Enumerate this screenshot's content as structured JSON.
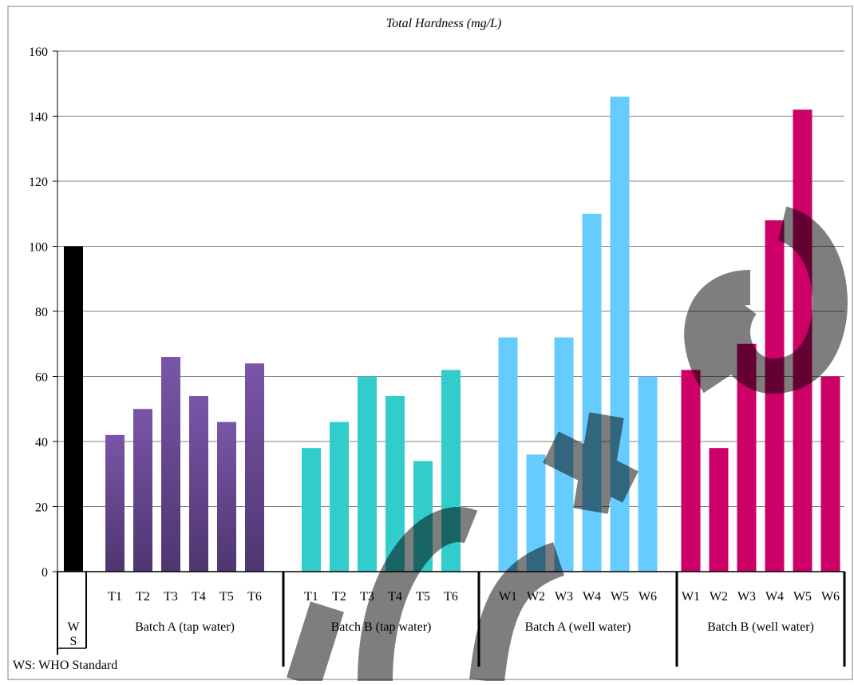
{
  "chart_data": {
    "type": "bar",
    "title": "Total Hardness (mg/L)",
    "ylim": [
      0,
      160
    ],
    "yticks": [
      0,
      20,
      40,
      60,
      80,
      100,
      120,
      140,
      160
    ],
    "grid": true,
    "footnote": "WS: WHO Standard",
    "groups": [
      {
        "name": "W\nS",
        "name_lines": [
          "W",
          "S"
        ],
        "color": "#000000",
        "bars": [
          {
            "label": "",
            "value": 100
          }
        ]
      },
      {
        "name": "Batch A (tap water)",
        "color": "#7a55a8",
        "gradient_bottom": "#4e3670",
        "bars": [
          {
            "label": "T1",
            "value": 42
          },
          {
            "label": "T2",
            "value": 50
          },
          {
            "label": "T3",
            "value": 66
          },
          {
            "label": "T4",
            "value": 54
          },
          {
            "label": "T5",
            "value": 46
          },
          {
            "label": "T6",
            "value": 64
          }
        ]
      },
      {
        "name": "Batch B (tap water)",
        "color": "#33cccc",
        "bars": [
          {
            "label": "T1",
            "value": 38
          },
          {
            "label": "T2",
            "value": 46
          },
          {
            "label": "T3",
            "value": 60
          },
          {
            "label": "T4",
            "value": 54
          },
          {
            "label": "T5",
            "value": 34
          },
          {
            "label": "T6",
            "value": 62
          }
        ]
      },
      {
        "name": "Batch A (well water)",
        "color": "#66ccff",
        "bars": [
          {
            "label": "W1",
            "value": 72
          },
          {
            "label": "W2",
            "value": 36
          },
          {
            "label": "W3",
            "value": 72
          },
          {
            "label": "W4",
            "value": 110
          },
          {
            "label": "W5",
            "value": 146
          },
          {
            "label": "W6",
            "value": 60
          }
        ]
      },
      {
        "name": "Batch B (well water)",
        "color": "#cc0066",
        "bars": [
          {
            "label": "W1",
            "value": 62
          },
          {
            "label": "W2",
            "value": 38
          },
          {
            "label": "W3",
            "value": 70
          },
          {
            "label": "W4",
            "value": 108
          },
          {
            "label": "W5",
            "value": 142
          },
          {
            "label": "W6",
            "value": 60
          }
        ]
      }
    ]
  },
  "watermark": {
    "text": "Retracted",
    "color": "#000000"
  }
}
